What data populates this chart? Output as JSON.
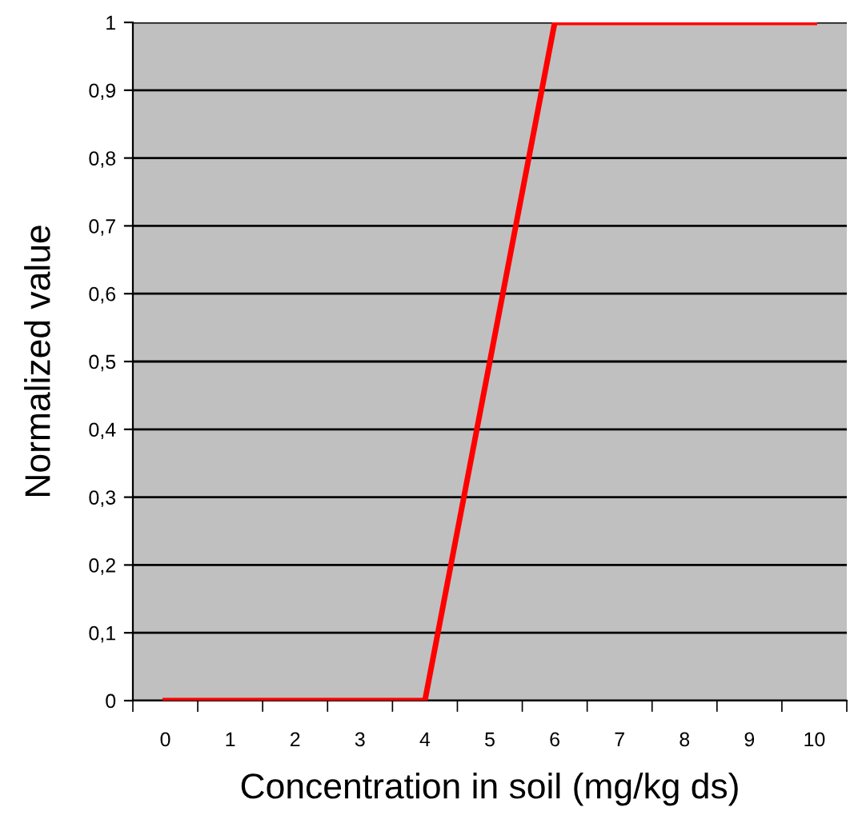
{
  "chart_data": {
    "type": "line",
    "xlabel": "Concentration in soil (mg/kg ds)",
    "ylabel": "Normalized value",
    "categories": [
      "0",
      "1",
      "2",
      "3",
      "4",
      "5",
      "6",
      "7",
      "8",
      "9",
      "10"
    ],
    "series": [
      {
        "color": "#ff0000",
        "values": [
          0,
          0,
          0,
          0,
          0,
          0.5,
          1,
          1,
          1,
          1,
          1
        ]
      }
    ],
    "ylim": [
      0,
      1
    ],
    "yticks": [
      0,
      {
        "value": 0.1,
        "label": "0,1"
      },
      {
        "value": 0.2,
        "label": "0,2"
      },
      {
        "value": 0.3,
        "label": "0,3"
      },
      {
        "value": 0.4,
        "label": "0,4"
      },
      {
        "value": 0.5,
        "label": "0,5"
      },
      {
        "value": 0.6,
        "label": "0,6"
      },
      {
        "value": 0.7,
        "label": "0,7"
      },
      {
        "value": 0.8,
        "label": "0,8"
      },
      {
        "value": 0.9,
        "label": "0,9"
      },
      1
    ],
    "grid": "y",
    "marker": "none",
    "line_style": "solid"
  }
}
